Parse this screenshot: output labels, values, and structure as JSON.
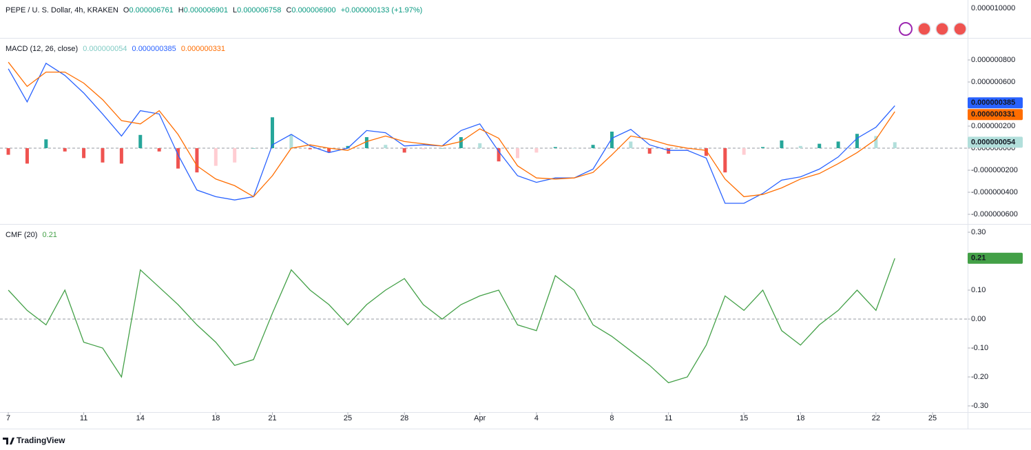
{
  "header": {
    "symbol": "PEPE / U. S. Dollar, 4h, KRAKEN",
    "open_label": "O",
    "open": "0.000006761",
    "high_label": "H",
    "high": "0.000006901",
    "low_label": "L",
    "low": "0.000006758",
    "close_label": "C",
    "close": "0.000006900",
    "change": "+0.000000133 (+1.97%)",
    "price_axis_label": "0.000010000"
  },
  "chart_data": [
    {
      "type": "macd",
      "title": "MACD (12, 26, close)",
      "legend_values": [
        "0.000000054",
        "0.000000385",
        "0.000000331"
      ],
      "x": [
        0,
        1,
        2,
        3,
        4,
        5,
        6,
        7,
        8,
        9,
        10,
        11,
        12,
        13,
        14,
        15,
        16,
        17,
        18,
        19,
        20,
        21,
        22,
        23,
        24,
        25,
        26,
        27,
        28,
        29,
        30,
        31,
        32,
        33,
        34,
        35,
        36,
        37,
        38,
        39,
        40,
        41,
        42,
        43,
        44,
        45,
        46,
        47
      ],
      "histogram": {
        "values": [
          -6e-08,
          -1.4e-07,
          8e-08,
          -3e-08,
          -9e-08,
          -1.3e-07,
          -1.4e-07,
          1.2e-07,
          -3e-08,
          -1.85e-07,
          -2.2e-07,
          -1.6e-07,
          -1.3e-07,
          0,
          2.8e-07,
          1.25e-07,
          -1e-08,
          -4e-08,
          2e-08,
          1e-07,
          3e-08,
          -4e-08,
          -1e-08,
          0,
          1e-07,
          4.5e-08,
          -1.2e-07,
          -9e-08,
          -4e-08,
          1e-08,
          0,
          3e-08,
          1.5e-07,
          6e-08,
          -5e-08,
          -5e-08,
          -2e-08,
          -7e-08,
          -2.2e-07,
          -6e-08,
          1e-08,
          7e-08,
          2e-08,
          4e-08,
          6e-08,
          1.3e-07,
          1.1e-07,
          5.4e-08
        ],
        "colors": {
          "up_strong": "#26a69a",
          "up_weak": "#b2dfdb",
          "down_strong": "#ef5350",
          "down_weak": "#ffcdd2"
        }
      },
      "series": [
        {
          "color": "#2962ff",
          "values": [
            7.2e-07,
            4.2e-07,
            7.7e-07,
            6.6e-07,
            5e-07,
            3.1e-07,
            1.1e-07,
            3.4e-07,
            3.1e-07,
            -6e-08,
            -3.8e-07,
            -4.4e-07,
            -4.7e-07,
            -4.4e-07,
            3e-08,
            1.25e-07,
            2e-08,
            -4e-08,
            0,
            1.6e-07,
            1.4e-07,
            2e-08,
            3e-08,
            2e-08,
            1.6e-07,
            2.2e-07,
            -3e-08,
            -2.5e-07,
            -3.1e-07,
            -2.7e-07,
            -2.7e-07,
            -1.9e-07,
            9e-08,
            1.7e-07,
            3e-08,
            -2e-08,
            -2e-08,
            -9e-08,
            -5e-07,
            -5e-07,
            -4.1e-07,
            -2.9e-07,
            -2.6e-07,
            -1.9e-07,
            -8e-08,
            9e-08,
            1.9e-07,
            3.85e-07
          ]
        },
        {
          "color": "#ff6d00",
          "values": [
            7.8e-07,
            5.6e-07,
            6.9e-07,
            6.9e-07,
            5.9e-07,
            4.4e-07,
            2.5e-07,
            2.2e-07,
            3.4e-07,
            1.25e-07,
            -1.6e-07,
            -2.8e-07,
            -3.4e-07,
            -4.4e-07,
            -2.5e-07,
            0,
            3e-08,
            0,
            -2e-08,
            6e-08,
            1.1e-07,
            6e-08,
            4e-08,
            2e-08,
            6e-08,
            1.75e-07,
            9e-08,
            -1.6e-07,
            -2.7e-07,
            -2.8e-07,
            -2.7e-07,
            -2.2e-07,
            -6e-08,
            1.1e-07,
            8e-08,
            3e-08,
            0,
            -2e-08,
            -2.8e-07,
            -4.4e-07,
            -4.2e-07,
            -3.6e-07,
            -2.8e-07,
            -2.3e-07,
            -1.4e-07,
            -4e-08,
            8e-08,
            3.31e-07
          ]
        }
      ],
      "ylim": [
        -6.875e-07,
        9.9375e-07
      ],
      "yticks": [
        {
          "value": 8e-07,
          "label": "0.000000800"
        },
        {
          "value": 6e-07,
          "label": "0.000000600"
        },
        {
          "value": 2e-07,
          "label": "0.000000200"
        },
        {
          "value": 0,
          "label": "0.000000000"
        },
        {
          "value": -2e-07,
          "label": "-0.000000200"
        },
        {
          "value": -4e-07,
          "label": "-0.000000400"
        },
        {
          "value": -6e-07,
          "label": "-0.000000600"
        }
      ],
      "zero_line": true
    },
    {
      "type": "line",
      "title": "CMF (20)",
      "legend_values": [
        "0.21"
      ],
      "x": [
        0,
        1,
        2,
        3,
        4,
        5,
        6,
        7,
        8,
        9,
        10,
        11,
        12,
        13,
        14,
        15,
        16,
        17,
        18,
        19,
        20,
        21,
        22,
        23,
        24,
        25,
        26,
        27,
        28,
        29,
        30,
        31,
        32,
        33,
        34,
        35,
        36,
        37,
        38,
        39,
        40,
        41,
        42,
        43,
        44,
        45,
        46,
        47
      ],
      "series": [
        {
          "color": "#43a047",
          "values": [
            0.1,
            0.03,
            -0.02,
            0.1,
            -0.08,
            -0.1,
            -0.2,
            0.17,
            0.11,
            0.05,
            -0.02,
            -0.08,
            -0.16,
            -0.14,
            0.02,
            0.17,
            0.1,
            0.05,
            -0.02,
            0.05,
            0.1,
            0.14,
            0.05,
            0.0,
            0.05,
            0.08,
            0.1,
            -0.02,
            -0.04,
            0.15,
            0.1,
            -0.02,
            -0.06,
            -0.11,
            -0.16,
            -0.22,
            -0.2,
            -0.09,
            0.08,
            0.03,
            0.1,
            -0.04,
            -0.09,
            -0.02,
            0.03,
            0.1,
            0.03,
            0.21
          ]
        }
      ],
      "ylim": [
        -0.3214,
        0.3262
      ],
      "yticks": [
        {
          "value": 0.3,
          "label": "0.30"
        },
        {
          "value": 0.1,
          "label": "0.10"
        },
        {
          "value": 0,
          "label": "0.00"
        },
        {
          "value": -0.1,
          "label": "-0.10"
        },
        {
          "value": -0.2,
          "label": "-0.20"
        },
        {
          "value": -0.3,
          "label": "-0.30"
        }
      ],
      "zero_line": true
    }
  ],
  "x_axis": {
    "xlim": [
      -0.44,
      50.86
    ],
    "xticks": [
      {
        "value": 0,
        "label": "7"
      },
      {
        "value": 4,
        "label": "11"
      },
      {
        "value": 7,
        "label": "14"
      },
      {
        "value": 11,
        "label": "18"
      },
      {
        "value": 14,
        "label": "21"
      },
      {
        "value": 18,
        "label": "25"
      },
      {
        "value": 21,
        "label": "28"
      },
      {
        "value": 25,
        "label": "Apr"
      },
      {
        "value": 28,
        "label": "4"
      },
      {
        "value": 32,
        "label": "8"
      },
      {
        "value": 35,
        "label": "11"
      },
      {
        "value": 39,
        "label": "15"
      },
      {
        "value": 42,
        "label": "18"
      },
      {
        "value": 46,
        "label": "22"
      },
      {
        "value": 49,
        "label": "25"
      }
    ]
  },
  "footer": "TradingView"
}
